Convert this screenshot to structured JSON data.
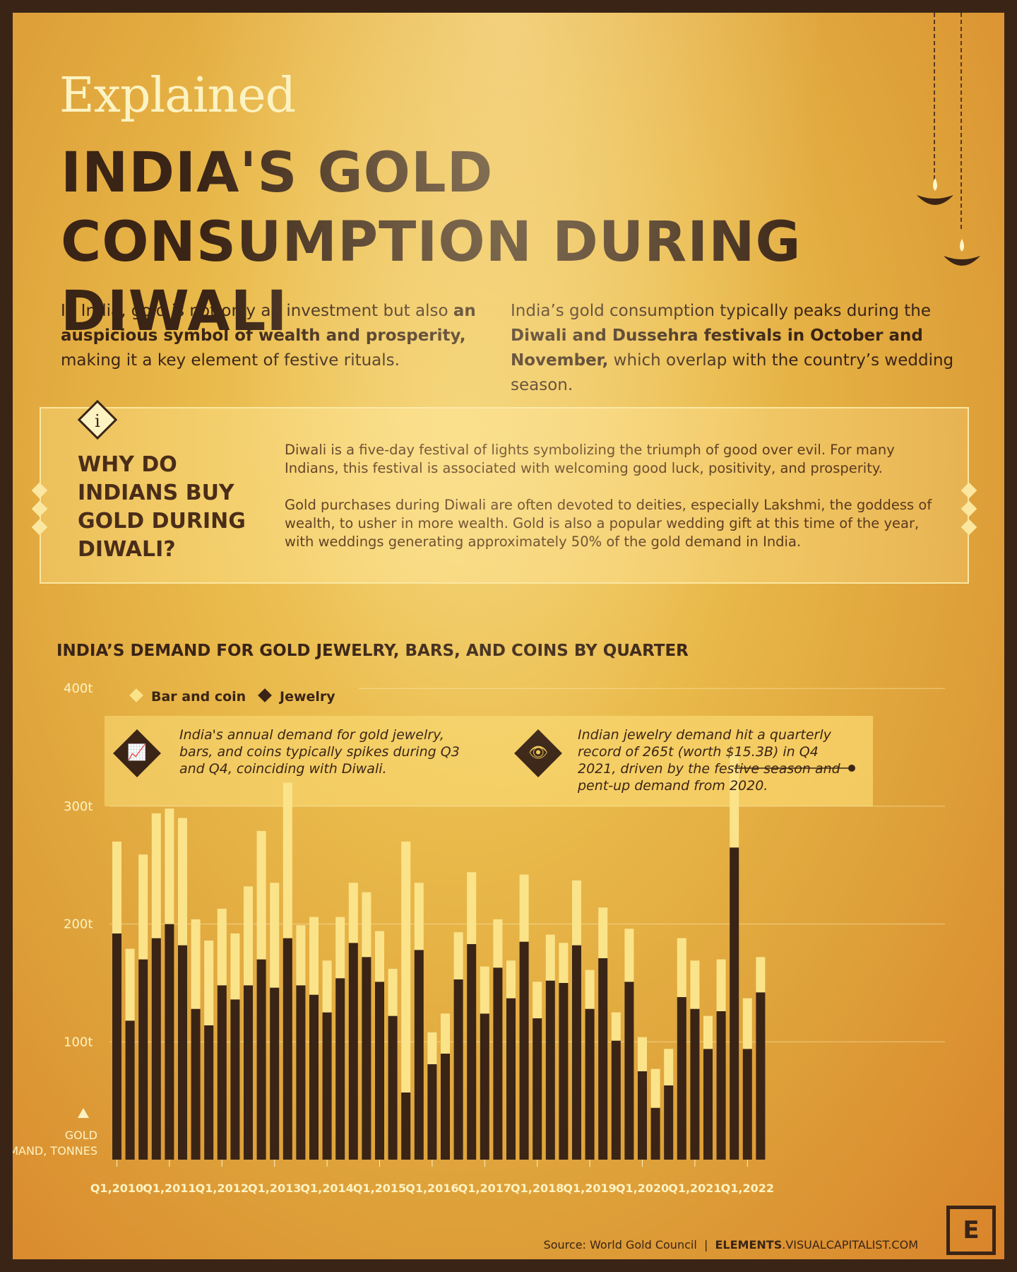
{
  "header": {
    "kicker": "Explained",
    "title": "INDIA'S GOLD CONSUMPTION DURING DIWALI"
  },
  "intro": {
    "left_pre": "In India, gold is not only an investment but also ",
    "left_bold": "an auspicious symbol of wealth and prosperity,",
    "left_post": " making it a key element of festive rituals.",
    "right_pre": "India’s gold consumption typically peaks during the ",
    "right_bold": "Diwali and Dussehra festivals in October and November,",
    "right_post": " which overlap with the country’s wedding season."
  },
  "info": {
    "icon": "i",
    "heading": "WHY DO INDIANS BUY GOLD DURING DIWALI?",
    "para1": "Diwali is a five-day festival of lights symbolizing the triumph of good over evil. For many Indians, this festival is associated with welcoming good luck, positivity, and prosperity.",
    "para2": "Gold purchases during Diwali are often devoted to deities, especially Lakshmi, the goddess of wealth, to usher in more wealth. Gold is also a popular wedding gift at this time of the year, with weddings generating approximately 50% of the gold demand in India."
  },
  "callouts": {
    "left": "India's annual demand for gold jewelry, bars, and coins typically spikes during Q3 and Q4, coinciding with Diwali.",
    "right": "Indian jewelry demand hit a quarterly record of 265t (worth $15.3B) in Q4 2021, driven by the festive season and pent-up demand from 2020."
  },
  "footer": {
    "source": "Source: World Gold Council",
    "separator": "|",
    "brand_bold": "ELEMENTS",
    "brand_rest": ".VISUALCAPITALIST.COM",
    "logo": "E"
  },
  "colors": {
    "jewelry": "#3a2416",
    "bar_and_coin": "#fbe38a",
    "text_dark": "#3a2416",
    "axis_label": "#fdf3c2"
  },
  "chart_data": {
    "type": "bar",
    "stacked": true,
    "title": "INDIA’S DEMAND FOR GOLD JEWELRY, BARS, AND COINS BY QUARTER",
    "ylabel": "GOLD DEMAND, TONNES",
    "ylim": [
      0,
      400
    ],
    "yticks": [
      100,
      200,
      300,
      400
    ],
    "ytick_labels": [
      "100t",
      "200t",
      "300t",
      "400t"
    ],
    "legend": [
      "Bar and coin",
      "Jewelry"
    ],
    "legend_position": "top-left",
    "xtick_labels": [
      "Q1,2010",
      "Q1,2011",
      "Q1,2012",
      "Q1,2013",
      "Q1,2014",
      "Q1,2015",
      "Q1,2016",
      "Q1,2017",
      "Q1,2018",
      "Q1,2019",
      "Q1,2020",
      "Q1,2021",
      "Q1,2022"
    ],
    "categories": [
      "Q1 2010",
      "Q2 2010",
      "Q3 2010",
      "Q4 2010",
      "Q1 2011",
      "Q2 2011",
      "Q3 2011",
      "Q4 2011",
      "Q1 2012",
      "Q2 2012",
      "Q3 2012",
      "Q4 2012",
      "Q1 2013",
      "Q2 2013",
      "Q3 2013",
      "Q4 2013",
      "Q1 2014",
      "Q2 2014",
      "Q3 2014",
      "Q4 2014",
      "Q1 2015",
      "Q2 2015",
      "Q3 2015",
      "Q4 2015",
      "Q1 2016",
      "Q2 2016",
      "Q3 2016",
      "Q4 2016",
      "Q1 2017",
      "Q2 2017",
      "Q3 2017",
      "Q4 2017",
      "Q1 2018",
      "Q2 2018",
      "Q3 2018",
      "Q4 2018",
      "Q1 2019",
      "Q2 2019",
      "Q3 2019",
      "Q4 2019",
      "Q1 2020",
      "Q2 2020",
      "Q3 2020",
      "Q4 2020",
      "Q1 2021",
      "Q2 2021",
      "Q3 2021",
      "Q4 2021",
      "Q1 2022",
      "Q2 2022"
    ],
    "series": [
      {
        "name": "Jewelry",
        "values": [
          192,
          118,
          170,
          188,
          200,
          182,
          128,
          114,
          148,
          136,
          148,
          170,
          146,
          188,
          148,
          140,
          125,
          154,
          184,
          172,
          151,
          122,
          57,
          178,
          81,
          90,
          153,
          183,
          124,
          163,
          137,
          185,
          120,
          152,
          150,
          182,
          128,
          171,
          101,
          151,
          75,
          44,
          63,
          138,
          128,
          94,
          126,
          265,
          94,
          142
        ]
      },
      {
        "name": "Bar and coin",
        "values": [
          78,
          61,
          89,
          106,
          98,
          108,
          76,
          72,
          65,
          56,
          84,
          109,
          89,
          132,
          51,
          66,
          44,
          52,
          51,
          55,
          43,
          40,
          213,
          57,
          27,
          34,
          40,
          61,
          40,
          41,
          32,
          57,
          31,
          39,
          34,
          55,
          33,
          43,
          24,
          45,
          29,
          33,
          31,
          50,
          41,
          28,
          44,
          80,
          43,
          30
        ]
      }
    ]
  }
}
